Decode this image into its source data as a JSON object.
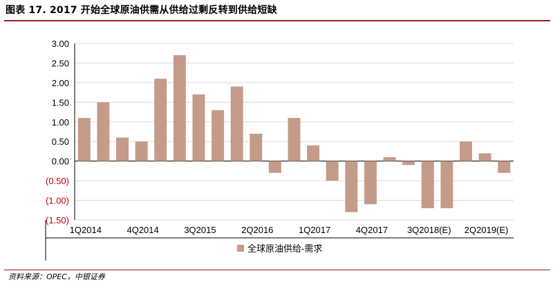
{
  "title": "图表 17. 2017 开始全球原油供需从供给过剩反转到供给短缺",
  "source": "资料来源：OPEC，中银证券",
  "colors": {
    "bar": "#c49a88",
    "negative_tick": "#c00000",
    "rule": "#9b1c1c",
    "grid": "#d9d9d9"
  },
  "chart_data": {
    "type": "bar",
    "categories": [
      "1Q2014",
      "2Q2014",
      "3Q2014",
      "4Q2014",
      "1Q2015",
      "2Q2015",
      "3Q2015",
      "4Q2015",
      "1Q2016",
      "2Q2016",
      "3Q2016",
      "4Q2016",
      "1Q2017",
      "2Q2017",
      "3Q2017",
      "4Q2017",
      "1Q2018",
      "2Q2018",
      "3Q2018(E)",
      "4Q2018(E)",
      "1Q2019(E)",
      "2Q2019(E)",
      "3Q2019(E)"
    ],
    "x_tick_labels": [
      "1Q2014",
      "",
      "",
      "4Q2014",
      "",
      "",
      "3Q2015",
      "",
      "",
      "2Q2016",
      "",
      "",
      "1Q2017",
      "",
      "",
      "4Q2017",
      "",
      "",
      "3Q2018(E)",
      "",
      "",
      "2Q2019(E)",
      ""
    ],
    "series": [
      {
        "name": "全球原油供给-需求",
        "values": [
          1.1,
          1.5,
          0.6,
          0.5,
          2.1,
          2.7,
          1.7,
          1.3,
          1.9,
          0.7,
          -0.3,
          1.1,
          0.4,
          -0.5,
          -1.3,
          -1.1,
          0.1,
          -0.1,
          -1.2,
          -1.2,
          0.5,
          0.2,
          -0.3
        ]
      }
    ],
    "y_ticks": [
      "3.00",
      "2.50",
      "2.00",
      "1.50",
      "1.00",
      "0.50",
      "0.00",
      "(0.50)",
      "(1.00)",
      "(1.50)"
    ],
    "ylim": [
      -1.5,
      3.0
    ],
    "grid": true,
    "legend": "bottom",
    "xlabel": "",
    "ylabel": ""
  }
}
